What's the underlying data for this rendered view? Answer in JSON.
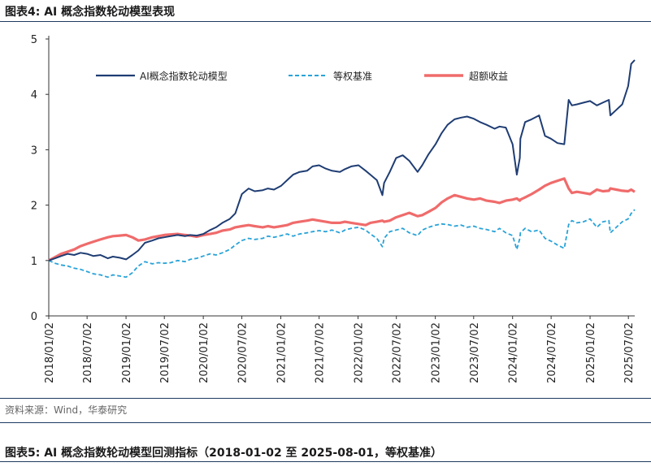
{
  "figure_title": "图表4:  AI 概念指数轮动模型表现",
  "source_note": "资料来源：Wind，华泰研究",
  "next_figure_title": "图表5:  AI 概念指数轮动模型回测指标（2018-01-02 至 2025-08-01，等权基准）",
  "chart_data": {
    "type": "line",
    "title": "",
    "xlabel": "",
    "ylabel": "",
    "ylim": [
      0,
      5
    ],
    "yticks": [
      "0",
      "1",
      "2",
      "3",
      "4",
      "5"
    ],
    "xlim": [
      "2018-01-02",
      "2025-08-01"
    ],
    "xticks": [
      "2018/01/02",
      "2018/07/02",
      "2019/01/02",
      "2019/07/02",
      "2020/01/02",
      "2020/07/02",
      "2021/01/02",
      "2021/07/02",
      "2022/01/02",
      "2022/07/02",
      "2023/01/02",
      "2023/07/02",
      "2024/01/02",
      "2024/07/02",
      "2025/01/02",
      "2025/07/02"
    ],
    "grid": false,
    "legend_position": "top",
    "series": [
      {
        "name": "AI概念指数轮动模型",
        "color": "#1f3d73",
        "style": "solid",
        "x": [
          "2018-01-02",
          "2018-02-01",
          "2018-03-01",
          "2018-04-02",
          "2018-05-02",
          "2018-06-01",
          "2018-07-02",
          "2018-08-01",
          "2018-09-03",
          "2018-10-08",
          "2018-11-01",
          "2018-12-03",
          "2019-01-02",
          "2019-02-01",
          "2019-03-01",
          "2019-04-01",
          "2019-05-06",
          "2019-06-03",
          "2019-07-02",
          "2019-08-01",
          "2019-09-02",
          "2019-10-08",
          "2019-11-01",
          "2019-12-02",
          "2020-01-02",
          "2020-02-03",
          "2020-03-02",
          "2020-04-01",
          "2020-05-06",
          "2020-06-01",
          "2020-07-02",
          "2020-08-03",
          "2020-09-01",
          "2020-10-09",
          "2020-11-02",
          "2020-12-01",
          "2021-01-04",
          "2021-02-01",
          "2021-03-01",
          "2021-04-01",
          "2021-05-06",
          "2021-06-01",
          "2021-07-02",
          "2021-08-02",
          "2021-09-01",
          "2021-10-08",
          "2021-11-01",
          "2021-12-01",
          "2022-01-04",
          "2022-02-07",
          "2022-03-01",
          "2022-04-01",
          "2022-04-27",
          "2022-05-05",
          "2022-06-01",
          "2022-07-01",
          "2022-08-01",
          "2022-09-01",
          "2022-10-10",
          "2022-11-01",
          "2022-12-01",
          "2023-01-03",
          "2023-02-01",
          "2023-03-01",
          "2023-04-03",
          "2023-05-04",
          "2023-06-01",
          "2023-07-03",
          "2023-08-01",
          "2023-09-01",
          "2023-10-09",
          "2023-11-01",
          "2023-12-01",
          "2024-01-02",
          "2024-01-22",
          "2024-02-05",
          "2024-02-08",
          "2024-03-01",
          "2024-04-01",
          "2024-05-06",
          "2024-06-03",
          "2024-07-01",
          "2024-08-01",
          "2024-09-02",
          "2024-09-23",
          "2024-10-08",
          "2024-11-01",
          "2024-12-02",
          "2025-01-02",
          "2025-02-03",
          "2025-03-03",
          "2025-04-01",
          "2025-04-08",
          "2025-05-06",
          "2025-06-03",
          "2025-07-01",
          "2025-07-15",
          "2025-08-01"
        ],
        "y": [
          1.0,
          1.04,
          1.08,
          1.12,
          1.1,
          1.14,
          1.12,
          1.08,
          1.1,
          1.04,
          1.07,
          1.05,
          1.02,
          1.1,
          1.18,
          1.32,
          1.36,
          1.4,
          1.42,
          1.44,
          1.46,
          1.44,
          1.46,
          1.45,
          1.48,
          1.55,
          1.6,
          1.68,
          1.75,
          1.85,
          2.2,
          2.3,
          2.25,
          2.27,
          2.3,
          2.28,
          2.35,
          2.45,
          2.55,
          2.6,
          2.62,
          2.7,
          2.72,
          2.66,
          2.62,
          2.6,
          2.65,
          2.7,
          2.72,
          2.62,
          2.55,
          2.45,
          2.18,
          2.4,
          2.6,
          2.85,
          2.9,
          2.8,
          2.6,
          2.72,
          2.92,
          3.1,
          3.3,
          3.45,
          3.55,
          3.58,
          3.6,
          3.56,
          3.5,
          3.45,
          3.38,
          3.42,
          3.4,
          3.1,
          2.55,
          2.85,
          3.2,
          3.5,
          3.55,
          3.62,
          3.25,
          3.2,
          3.12,
          3.1,
          3.9,
          3.8,
          3.82,
          3.85,
          3.88,
          3.8,
          3.85,
          3.9,
          3.62,
          3.72,
          3.82,
          4.15,
          4.55,
          4.62
        ]
      },
      {
        "name": "等权基准",
        "color": "#29a3d8",
        "style": "dashed",
        "x": [
          "2018-01-02",
          "2018-02-01",
          "2018-03-01",
          "2018-04-02",
          "2018-05-02",
          "2018-06-01",
          "2018-07-02",
          "2018-08-01",
          "2018-09-03",
          "2018-10-08",
          "2018-11-01",
          "2018-12-03",
          "2019-01-02",
          "2019-02-01",
          "2019-03-01",
          "2019-04-01",
          "2019-05-06",
          "2019-06-03",
          "2019-07-02",
          "2019-08-01",
          "2019-09-02",
          "2019-10-08",
          "2019-11-01",
          "2019-12-02",
          "2020-01-02",
          "2020-02-03",
          "2020-03-02",
          "2020-04-01",
          "2020-05-06",
          "2020-06-01",
          "2020-07-02",
          "2020-08-03",
          "2020-09-01",
          "2020-10-09",
          "2020-11-02",
          "2020-12-01",
          "2021-01-04",
          "2021-02-01",
          "2021-03-01",
          "2021-04-01",
          "2021-05-06",
          "2021-06-01",
          "2021-07-02",
          "2021-08-02",
          "2021-09-01",
          "2021-10-08",
          "2021-11-01",
          "2021-12-01",
          "2022-01-04",
          "2022-02-07",
          "2022-03-01",
          "2022-04-01",
          "2022-04-27",
          "2022-05-05",
          "2022-06-01",
          "2022-07-01",
          "2022-08-01",
          "2022-09-01",
          "2022-10-10",
          "2022-11-01",
          "2022-12-01",
          "2023-01-03",
          "2023-02-01",
          "2023-03-01",
          "2023-04-03",
          "2023-05-04",
          "2023-06-01",
          "2023-07-03",
          "2023-08-01",
          "2023-09-01",
          "2023-10-09",
          "2023-11-01",
          "2023-12-01",
          "2024-01-02",
          "2024-01-22",
          "2024-02-05",
          "2024-02-08",
          "2024-03-01",
          "2024-04-01",
          "2024-05-06",
          "2024-06-03",
          "2024-07-01",
          "2024-08-01",
          "2024-09-02",
          "2024-09-23",
          "2024-10-08",
          "2024-11-01",
          "2024-12-02",
          "2025-01-02",
          "2025-02-03",
          "2025-03-03",
          "2025-04-01",
          "2025-04-08",
          "2025-05-06",
          "2025-06-03",
          "2025-07-01",
          "2025-07-15",
          "2025-08-01"
        ],
        "y": [
          1.0,
          0.95,
          0.92,
          0.9,
          0.86,
          0.84,
          0.8,
          0.76,
          0.74,
          0.7,
          0.74,
          0.72,
          0.7,
          0.78,
          0.9,
          0.98,
          0.94,
          0.96,
          0.95,
          0.96,
          1.0,
          0.98,
          1.02,
          1.04,
          1.08,
          1.12,
          1.1,
          1.14,
          1.2,
          1.28,
          1.36,
          1.4,
          1.38,
          1.4,
          1.44,
          1.42,
          1.45,
          1.48,
          1.44,
          1.48,
          1.5,
          1.52,
          1.54,
          1.52,
          1.55,
          1.5,
          1.55,
          1.58,
          1.6,
          1.55,
          1.48,
          1.4,
          1.25,
          1.4,
          1.52,
          1.55,
          1.58,
          1.5,
          1.45,
          1.55,
          1.6,
          1.64,
          1.66,
          1.65,
          1.62,
          1.64,
          1.6,
          1.62,
          1.58,
          1.56,
          1.52,
          1.58,
          1.5,
          1.45,
          1.2,
          1.4,
          1.5,
          1.58,
          1.52,
          1.55,
          1.4,
          1.35,
          1.28,
          1.22,
          1.65,
          1.72,
          1.68,
          1.7,
          1.75,
          1.6,
          1.7,
          1.72,
          1.5,
          1.6,
          1.7,
          1.75,
          1.85,
          1.92
        ]
      },
      {
        "name": "超额收益",
        "color": "#f06b6b",
        "style": "solid",
        "x": [
          "2018-01-02",
          "2018-02-01",
          "2018-03-01",
          "2018-04-02",
          "2018-05-02",
          "2018-06-01",
          "2018-07-02",
          "2018-08-01",
          "2018-09-03",
          "2018-10-08",
          "2018-11-01",
          "2018-12-03",
          "2019-01-02",
          "2019-02-01",
          "2019-03-01",
          "2019-04-01",
          "2019-05-06",
          "2019-06-03",
          "2019-07-02",
          "2019-08-01",
          "2019-09-02",
          "2019-10-08",
          "2019-11-01",
          "2019-12-02",
          "2020-01-02",
          "2020-02-03",
          "2020-03-02",
          "2020-04-01",
          "2020-05-06",
          "2020-06-01",
          "2020-07-02",
          "2020-08-03",
          "2020-09-01",
          "2020-10-09",
          "2020-11-02",
          "2020-12-01",
          "2021-01-04",
          "2021-02-01",
          "2021-03-01",
          "2021-04-01",
          "2021-05-06",
          "2021-06-01",
          "2021-07-02",
          "2021-08-02",
          "2021-09-01",
          "2021-10-08",
          "2021-11-01",
          "2021-12-01",
          "2022-01-04",
          "2022-02-07",
          "2022-03-01",
          "2022-04-01",
          "2022-04-27",
          "2022-05-05",
          "2022-06-01",
          "2022-07-01",
          "2022-08-01",
          "2022-09-01",
          "2022-10-10",
          "2022-11-01",
          "2022-12-01",
          "2023-01-03",
          "2023-02-01",
          "2023-03-01",
          "2023-04-03",
          "2023-05-04",
          "2023-06-01",
          "2023-07-03",
          "2023-08-01",
          "2023-09-01",
          "2023-10-09",
          "2023-11-01",
          "2023-12-01",
          "2024-01-02",
          "2024-01-22",
          "2024-02-05",
          "2024-02-08",
          "2024-03-01",
          "2024-04-01",
          "2024-05-06",
          "2024-06-03",
          "2024-07-01",
          "2024-08-01",
          "2024-09-02",
          "2024-09-23",
          "2024-10-08",
          "2024-11-01",
          "2024-12-02",
          "2025-01-02",
          "2025-02-03",
          "2025-03-03",
          "2025-04-01",
          "2025-04-08",
          "2025-05-06",
          "2025-06-03",
          "2025-07-01",
          "2025-07-15",
          "2025-08-01"
        ],
        "y": [
          1.0,
          1.06,
          1.12,
          1.16,
          1.2,
          1.26,
          1.3,
          1.34,
          1.38,
          1.42,
          1.44,
          1.45,
          1.46,
          1.42,
          1.36,
          1.38,
          1.42,
          1.44,
          1.46,
          1.47,
          1.48,
          1.46,
          1.45,
          1.43,
          1.46,
          1.48,
          1.5,
          1.54,
          1.56,
          1.6,
          1.62,
          1.64,
          1.62,
          1.6,
          1.62,
          1.6,
          1.62,
          1.64,
          1.68,
          1.7,
          1.72,
          1.74,
          1.72,
          1.7,
          1.68,
          1.68,
          1.7,
          1.68,
          1.66,
          1.64,
          1.68,
          1.7,
          1.72,
          1.7,
          1.72,
          1.78,
          1.82,
          1.86,
          1.8,
          1.82,
          1.88,
          1.95,
          2.05,
          2.12,
          2.18,
          2.15,
          2.12,
          2.1,
          2.12,
          2.08,
          2.06,
          2.04,
          2.08,
          2.1,
          2.12,
          2.08,
          2.1,
          2.14,
          2.2,
          2.28,
          2.35,
          2.4,
          2.44,
          2.48,
          2.3,
          2.22,
          2.24,
          2.22,
          2.2,
          2.28,
          2.25,
          2.26,
          2.3,
          2.28,
          2.26,
          2.25,
          2.28,
          2.24
        ]
      }
    ]
  }
}
